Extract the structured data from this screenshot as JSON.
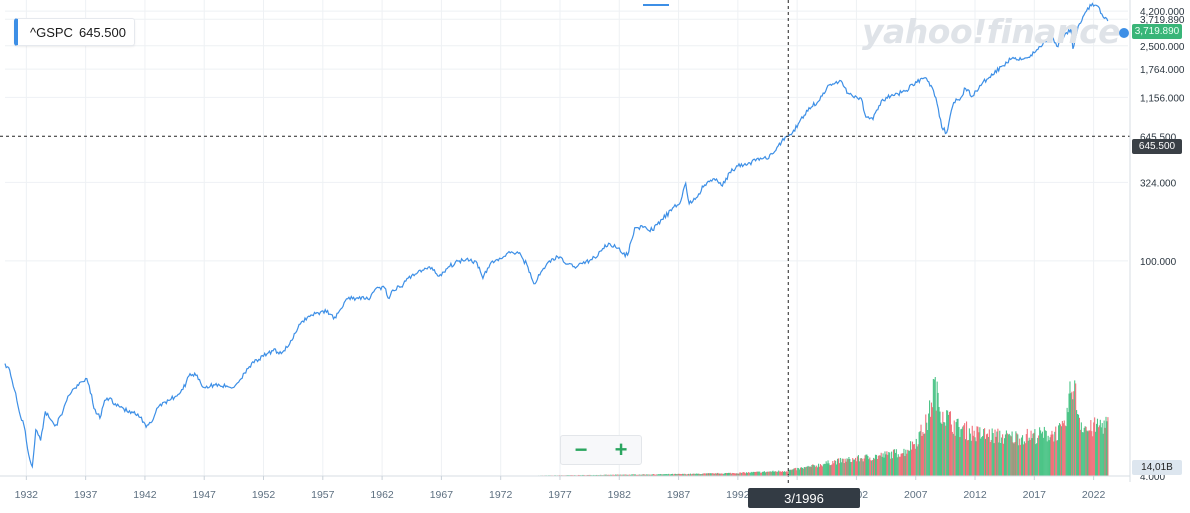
{
  "legend": {
    "symbol": "^GSPC",
    "value": "645.500"
  },
  "watermark": "yahoo!finance",
  "crosshair": {
    "x_label": "3/1996",
    "y_label": "645.500"
  },
  "price_tags": {
    "last": "3,719.890",
    "volume": "14,01B"
  },
  "zoom": {
    "out_label": "−",
    "in_label": "+"
  },
  "colors": {
    "line": "#3d8fe6",
    "grid": "#eef1f4",
    "vol_up": "#4cc487",
    "vol_down": "#f0707a",
    "axis_text": "#5d6f80"
  },
  "chart_data": {
    "type": "line",
    "title": "",
    "xlabel": "",
    "ylabel": "",
    "y_scale": "log",
    "xlim": [
      1930.2,
      2024.9
    ],
    "ylim": [
      4.0,
      4400
    ],
    "x_ticks": [
      "1932",
      "1937",
      "1942",
      "1947",
      "1952",
      "1957",
      "1962",
      "1967",
      "1972",
      "1977",
      "1982",
      "1987",
      "1992",
      "1997",
      "2002",
      "2007",
      "2012",
      "2017",
      "2022"
    ],
    "y_ticks": [
      {
        "value": 4.0,
        "label": "4.000"
      },
      {
        "value": 100,
        "label": "100.000"
      },
      {
        "value": 324,
        "label": "324.000"
      },
      {
        "value": 645.5,
        "label": "645.500"
      },
      {
        "value": 1156,
        "label": "1,156.000"
      },
      {
        "value": 1764,
        "label": "1,764.000"
      },
      {
        "value": 2500,
        "label": "2,500.000"
      },
      {
        "value": 3719.89,
        "label": "3,719.890"
      },
      {
        "value": 4200,
        "label": "4,200.000"
      }
    ],
    "series": [
      {
        "x": [
          1930.2,
          1930.6,
          1931.0,
          1931.4,
          1931.8,
          1932.2,
          1932.5,
          1932.8,
          1933.2,
          1933.6,
          1934.0,
          1934.5,
          1935.0,
          1935.5,
          1936.0,
          1936.5,
          1937.0,
          1937.3,
          1937.7,
          1938.2,
          1938.6,
          1939.0,
          1939.5,
          1940.0,
          1940.5,
          1941.0,
          1941.6,
          1942.1,
          1942.6,
          1943.0,
          1943.5,
          1944.0,
          1944.6,
          1945.2,
          1945.8,
          1946.4,
          1946.9,
          1947.5,
          1948.2,
          1948.8,
          1949.4,
          1950.0,
          1950.6,
          1951.2,
          1952.0,
          1952.8,
          1953.6,
          1954.4,
          1955.2,
          1956.0,
          1956.8,
          1957.4,
          1957.9,
          1958.5,
          1959.2,
          1960.0,
          1960.8,
          1961.5,
          1962.2,
          1962.5,
          1963.0,
          1963.8,
          1964.6,
          1965.4,
          1966.2,
          1966.8,
          1967.6,
          1968.4,
          1969.2,
          1970.0,
          1970.5,
          1971.2,
          1972.0,
          1972.9,
          1973.5,
          1974.2,
          1974.8,
          1975.3,
          1976.0,
          1976.8,
          1977.6,
          1978.2,
          1978.9,
          1979.6,
          1980.2,
          1980.8,
          1981.6,
          1982.3,
          1982.7,
          1983.3,
          1984.0,
          1984.8,
          1985.6,
          1986.4,
          1987.2,
          1987.6,
          1987.9,
          1988.5,
          1989.2,
          1990.0,
          1990.7,
          1991.3,
          1992.0,
          1992.8,
          1993.6,
          1994.4,
          1995.2,
          1996.0,
          1996.6,
          1997.2,
          1998.0,
          1998.8,
          1999.5,
          2000.2,
          2000.7,
          2001.3,
          2001.8,
          2002.4,
          2002.8,
          2003.4,
          2004.2,
          2005.2,
          2006.2,
          2007.0,
          2007.8,
          2008.3,
          2008.8,
          2009.2,
          2009.6,
          2010.2,
          2010.6,
          2011.2,
          2011.8,
          2012.5,
          2013.4,
          2014.3,
          2015.2,
          2016.1,
          2017.0,
          2017.9,
          2018.5,
          2018.9,
          2019.6,
          2020.1,
          2020.25,
          2020.7,
          2021.3,
          2021.9,
          2022.3,
          2022.8,
          2023.2
        ],
        "y": [
          21.5,
          19.5,
          14.5,
          10.5,
          8.5,
          5.5,
          4.6,
          8.0,
          6.8,
          10.5,
          9.4,
          8.6,
          10.0,
          13.2,
          14.8,
          16.2,
          17.2,
          15.5,
          11.0,
          9.5,
          12.4,
          12.8,
          11.8,
          11.3,
          10.5,
          10.3,
          9.6,
          8.3,
          9.0,
          11.0,
          12.0,
          12.4,
          13.2,
          14.6,
          18.5,
          18.1,
          15.1,
          15.3,
          15.8,
          15.2,
          15.0,
          16.8,
          19.9,
          21.8,
          24.0,
          26.0,
          25.5,
          30.5,
          40.2,
          44.5,
          46.5,
          47.5,
          42.0,
          48.5,
          58.0,
          57.0,
          56.5,
          66.5,
          67.0,
          57.5,
          64.0,
          70.5,
          82.0,
          87.0,
          90.5,
          79.5,
          91.5,
          99.5,
          104.0,
          97.0,
          77.0,
          98.0,
          103.5,
          114.5,
          112.0,
          95.0,
          71.0,
          81.0,
          98.0,
          106.5,
          95.5,
          92.0,
          96.0,
          102.0,
          108.0,
          127.0,
          127.5,
          111.0,
          109.0,
          164.0,
          165.0,
          158.0,
          186.0,
          212.0,
          246.0,
          320.0,
          235.0,
          258.0,
          312.0,
          342.0,
          306.0,
          376.0,
          413.0,
          422.0,
          461.0,
          461.0,
          522.0,
          640.0,
          680.0,
          800.0,
          990.0,
          1090.0,
          1330.0,
          1430.0,
          1480.0,
          1230.0,
          1150.0,
          1140.0,
          860.0,
          830.0,
          1120.0,
          1190.0,
          1280.0,
          1460.0,
          1550.0,
          1380.0,
          1050.0,
          735.0,
          680.0,
          1070.0,
          1115.0,
          1320.0,
          1180.0,
          1380.0,
          1640.0,
          1850.0,
          2100.0,
          2050.0,
          2250.0,
          2650.0,
          2900.0,
          2480.0,
          2980.0,
          3240.0,
          2390.0,
          3350.0,
          4120.0,
          4700.0,
          4550.0,
          3850.0,
          3620.0
        ]
      }
    ],
    "volume": {
      "note": "relative volume heights",
      "x": [
        1940,
        1950,
        1960,
        1970,
        1975,
        1980,
        1984,
        1988,
        1992,
        1996,
        1998,
        2000,
        2002,
        2004,
        2006,
        2007,
        2008,
        2008.5,
        2009,
        2009.6,
        2010.5,
        2012,
        2013.5,
        2015,
        2017,
        2018.5,
        2019.5,
        2020.2,
        2020.8,
        2021.5,
        2022.3,
        2023.0
      ],
      "v": [
        0.0,
        0.0,
        0.0,
        0.0,
        0.005,
        0.01,
        0.015,
        0.02,
        0.03,
        0.05,
        0.09,
        0.14,
        0.17,
        0.2,
        0.24,
        0.35,
        0.55,
        0.9,
        0.68,
        0.58,
        0.48,
        0.42,
        0.4,
        0.38,
        0.4,
        0.42,
        0.46,
        0.95,
        0.55,
        0.45,
        0.5,
        0.52
      ]
    }
  }
}
